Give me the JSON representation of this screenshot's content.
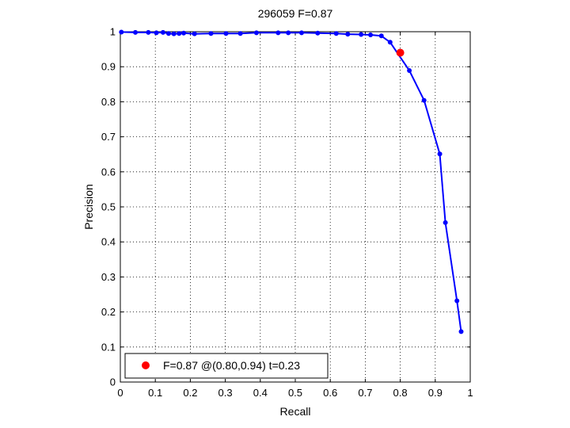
{
  "chart_data": {
    "type": "line",
    "title": "296059 F=0.87",
    "xlabel": "Recall",
    "ylabel": "Precision",
    "xlim": [
      0,
      1
    ],
    "ylim": [
      0,
      1
    ],
    "grid": true,
    "xticks": [
      "0",
      "0.1",
      "0.2",
      "0.3",
      "0.4",
      "0.5",
      "0.6",
      "0.7",
      "0.8",
      "0.9",
      "1"
    ],
    "yticks": [
      "0",
      "0.1",
      "0.2",
      "0.3",
      "0.4",
      "0.5",
      "0.6",
      "0.7",
      "0.8",
      "0.9",
      "1"
    ],
    "line_color": "#0000ff",
    "highlight_color": "#ff0000",
    "series": [
      {
        "x": [
          0.003,
          0.043,
          0.08,
          0.103,
          0.122,
          0.138,
          0.153,
          0.168,
          0.181,
          0.212,
          0.259,
          0.302,
          0.343,
          0.389,
          0.451,
          0.48,
          0.518,
          0.564,
          0.617,
          0.65,
          0.688,
          0.715,
          0.746,
          0.771,
          0.826,
          0.868,
          0.913,
          0.929,
          0.962,
          0.974
        ],
        "y": [
          0.999,
          0.998,
          0.998,
          0.997,
          0.998,
          0.995,
          0.994,
          0.995,
          0.996,
          0.994,
          0.995,
          0.995,
          0.995,
          0.997,
          0.997,
          0.997,
          0.997,
          0.996,
          0.995,
          0.993,
          0.992,
          0.991,
          0.988,
          0.97,
          0.889,
          0.804,
          0.651,
          0.455,
          0.232,
          0.144
        ]
      }
    ],
    "highlight": {
      "x": 0.8,
      "y": 0.94
    },
    "legend": {
      "location": "bottom-left",
      "text": "F=0.87 @(0.80,0.94) t=0.23"
    }
  }
}
